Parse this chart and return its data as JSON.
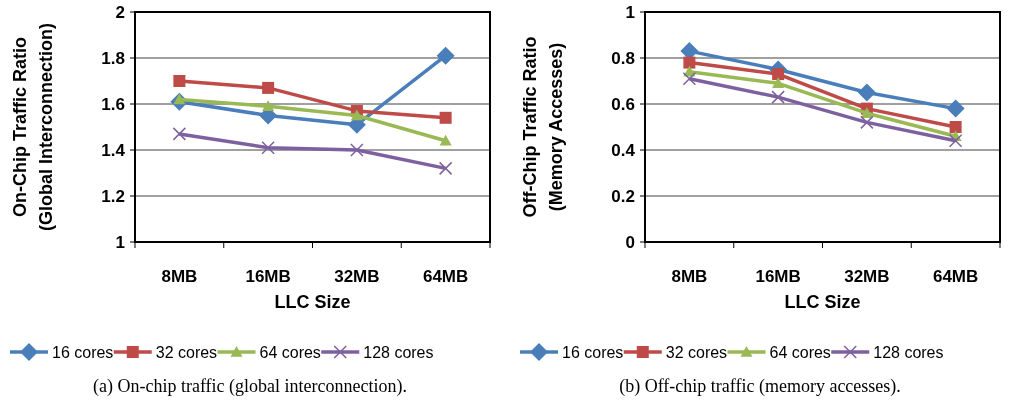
{
  "chart_data": [
    {
      "type": "line",
      "xlabel": "LLC Size",
      "ylabel": "On-Chip Traffic Ratio\n(Global Interconnection)",
      "categories": [
        "8MB",
        "16MB",
        "32MB",
        "64MB"
      ],
      "ylim": [
        1,
        2
      ],
      "yticks": [
        1,
        1.2,
        1.4,
        1.6,
        1.8,
        2
      ],
      "grid": "y",
      "legend": "bottom",
      "annotations": [
        "(a) On-chip traffic (global interconnection)."
      ],
      "series": [
        {
          "name": "16 cores",
          "color": "#4a7ebb",
          "marker": "diamond",
          "values": [
            1.61,
            1.55,
            1.51,
            1.81
          ]
        },
        {
          "name": "32 cores",
          "color": "#be4b48",
          "marker": "square",
          "values": [
            1.7,
            1.67,
            1.57,
            1.54
          ]
        },
        {
          "name": "64 cores",
          "color": "#98b954",
          "marker": "triangle",
          "values": [
            1.62,
            1.59,
            1.55,
            1.44
          ]
        },
        {
          "name": "128 cores",
          "color": "#7d60a0",
          "marker": "cross",
          "values": [
            1.47,
            1.41,
            1.4,
            1.32
          ]
        }
      ]
    },
    {
      "type": "line",
      "xlabel": "LLC Size",
      "ylabel": "Off-Chip Traffic Ratio\n(Memory Accesses)",
      "categories": [
        "8MB",
        "16MB",
        "32MB",
        "64MB"
      ],
      "ylim": [
        0,
        1
      ],
      "yticks": [
        0,
        0.2,
        0.4,
        0.6,
        0.8,
        1
      ],
      "grid": "y",
      "legend": "bottom",
      "annotations": [
        "(b) Off-chip traffic (memory accesses)."
      ],
      "series": [
        {
          "name": "16 cores",
          "color": "#4a7ebb",
          "marker": "diamond",
          "values": [
            0.83,
            0.75,
            0.65,
            0.58
          ]
        },
        {
          "name": "32 cores",
          "color": "#be4b48",
          "marker": "square",
          "values": [
            0.78,
            0.73,
            0.58,
            0.5
          ]
        },
        {
          "name": "64 cores",
          "color": "#98b954",
          "marker": "triangle",
          "values": [
            0.74,
            0.69,
            0.56,
            0.46
          ]
        },
        {
          "name": "128 cores",
          "color": "#7d60a0",
          "marker": "cross",
          "values": [
            0.71,
            0.63,
            0.52,
            0.44
          ]
        }
      ]
    }
  ]
}
